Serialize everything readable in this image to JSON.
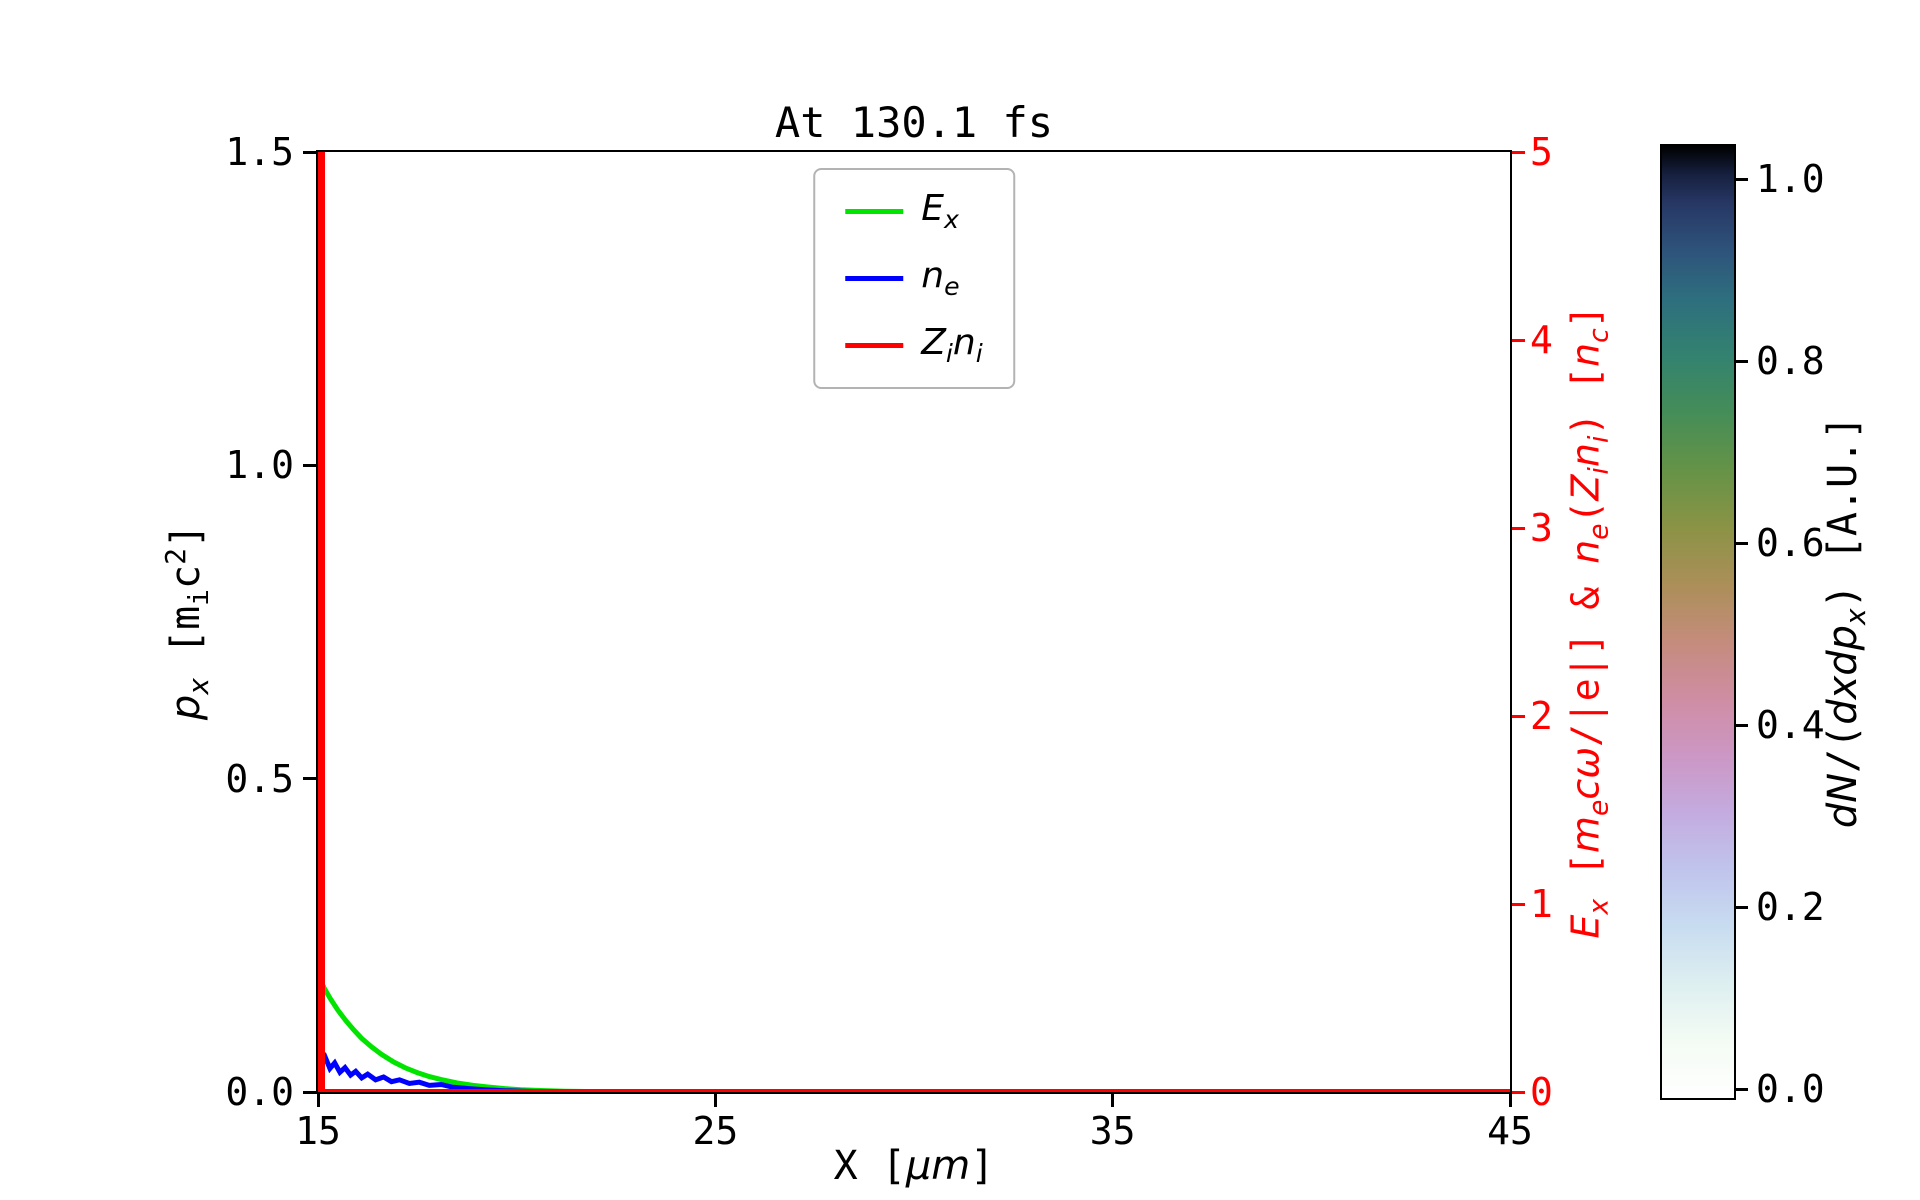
{
  "chart_data": {
    "type": "line",
    "title": "At 130.1 fs",
    "x_axis": {
      "label": "X [μm]",
      "label_html": "X [<i>μm</i>]",
      "lim": [
        15,
        45
      ],
      "ticks": [
        15,
        25,
        35,
        45
      ],
      "tick_labels": [
        "15",
        "25",
        "35",
        "45"
      ]
    },
    "y_axis_left": {
      "label": "p_x [m_i c^2]",
      "label_html": "<i>p<sub>x</sub></i> [m<sub>i</sub>c<sup>2</sup>]",
      "lim": [
        0.0,
        1.5
      ],
      "ticks": [
        0.0,
        0.5,
        1.0,
        1.5
      ],
      "tick_labels": [
        "0.0",
        "0.5",
        "1.0",
        "1.5"
      ],
      "color": "#000000"
    },
    "y_axis_right": {
      "label": "E_x [m_e cω/|e|] & n_e(Z_i n_i) [n_c]",
      "label_html": "<i>E<sub>x</sub></i> [<i>m<sub>e</sub>cω</i>/|e|] &amp; <i>n<sub>e</sub></i>(<i>Z<sub>i</sub>n<sub>i</sub></i>) [<i>n<sub>c</sub></i>]",
      "lim": [
        0,
        5
      ],
      "ticks": [
        0,
        1,
        2,
        3,
        4,
        5
      ],
      "tick_labels": [
        "0",
        "1",
        "2",
        "3",
        "4",
        "5"
      ],
      "color": "#ff0000"
    },
    "grid": false,
    "legend": {
      "location": "upper center"
    },
    "series": [
      {
        "id": "ex",
        "name": "E_x",
        "label_html": "<i>E<sub>x</sub></i>",
        "color": "#00e400",
        "axis": "right",
        "line_width": 5,
        "x": [
          15.0,
          15.15,
          15.3,
          15.5,
          15.7,
          15.9,
          16.1,
          16.35,
          16.6,
          16.9,
          17.2,
          17.5,
          17.8,
          18.1,
          18.5,
          18.9,
          19.3,
          19.7,
          20.1,
          20.6,
          21.2,
          22.0,
          23.0,
          45.0
        ],
        "y": [
          0.62,
          0.555,
          0.5,
          0.435,
          0.38,
          0.33,
          0.285,
          0.24,
          0.2,
          0.16,
          0.128,
          0.103,
          0.082,
          0.066,
          0.048,
          0.035,
          0.026,
          0.018,
          0.012,
          0.008,
          0.004,
          0.002,
          0.0,
          0.0
        ]
      },
      {
        "id": "ne",
        "name": "n_e",
        "label_html": "<i>n<sub>e</sub></i>",
        "color": "#0000ff",
        "axis": "right",
        "line_width": 5,
        "x": [
          15.0,
          15.08,
          15.18,
          15.3,
          15.42,
          15.55,
          15.68,
          15.82,
          15.95,
          16.1,
          16.25,
          16.45,
          16.65,
          16.85,
          17.05,
          17.3,
          17.55,
          17.8,
          18.1,
          18.4,
          18.8,
          19.2,
          19.7,
          20.3,
          21.0,
          45.0
        ],
        "y": [
          0.21,
          0.155,
          0.185,
          0.125,
          0.155,
          0.105,
          0.13,
          0.09,
          0.11,
          0.075,
          0.095,
          0.065,
          0.08,
          0.055,
          0.065,
          0.045,
          0.052,
          0.035,
          0.04,
          0.025,
          0.018,
          0.012,
          0.007,
          0.003,
          0.0,
          0.0
        ]
      },
      {
        "id": "zini",
        "name": "Z_i n_i",
        "label_html": "<i>Z<sub>i</sub>n<sub>i</sub></i>",
        "color": "#ff0000",
        "axis": "right",
        "line_width": 6,
        "x": [
          15.0,
          15.0,
          15.1,
          15.1,
          45.0
        ],
        "y": [
          0.0,
          5.0,
          5.0,
          0.0,
          0.0
        ]
      }
    ],
    "colorbar": {
      "label": "dN/(dxdp_x) [A.U.]",
      "label_html": "<i>dN</i>/(<i>dxdp<sub>x</sub></i>) [A.U.]",
      "lim": [
        0.0,
        1.0
      ],
      "ticks": [
        0.0,
        0.2,
        0.4,
        0.6,
        0.8,
        1.0
      ],
      "tick_labels": [
        "0.0",
        "0.2",
        "0.4",
        "0.6",
        "0.8",
        "1.0"
      ],
      "gradient": [
        {
          "pos": 0.0,
          "color": "#ffffff"
        },
        {
          "pos": 0.06,
          "color": "#f4fbf4"
        },
        {
          "pos": 0.12,
          "color": "#ddeff0"
        },
        {
          "pos": 0.18,
          "color": "#c8dcf0"
        },
        {
          "pos": 0.24,
          "color": "#c0c4ec"
        },
        {
          "pos": 0.3,
          "color": "#c4abdf"
        },
        {
          "pos": 0.36,
          "color": "#cc97c4"
        },
        {
          "pos": 0.42,
          "color": "#cf8da3"
        },
        {
          "pos": 0.48,
          "color": "#c48c7c"
        },
        {
          "pos": 0.54,
          "color": "#ab8f58"
        },
        {
          "pos": 0.6,
          "color": "#8a9346"
        },
        {
          "pos": 0.66,
          "color": "#659347"
        },
        {
          "pos": 0.72,
          "color": "#458d58"
        },
        {
          "pos": 0.78,
          "color": "#338270"
        },
        {
          "pos": 0.84,
          "color": "#2e6e7e"
        },
        {
          "pos": 0.89,
          "color": "#2e537b"
        },
        {
          "pos": 0.94,
          "color": "#273764"
        },
        {
          "pos": 0.97,
          "color": "#16203f"
        },
        {
          "pos": 1.0,
          "color": "#000000"
        }
      ]
    }
  }
}
